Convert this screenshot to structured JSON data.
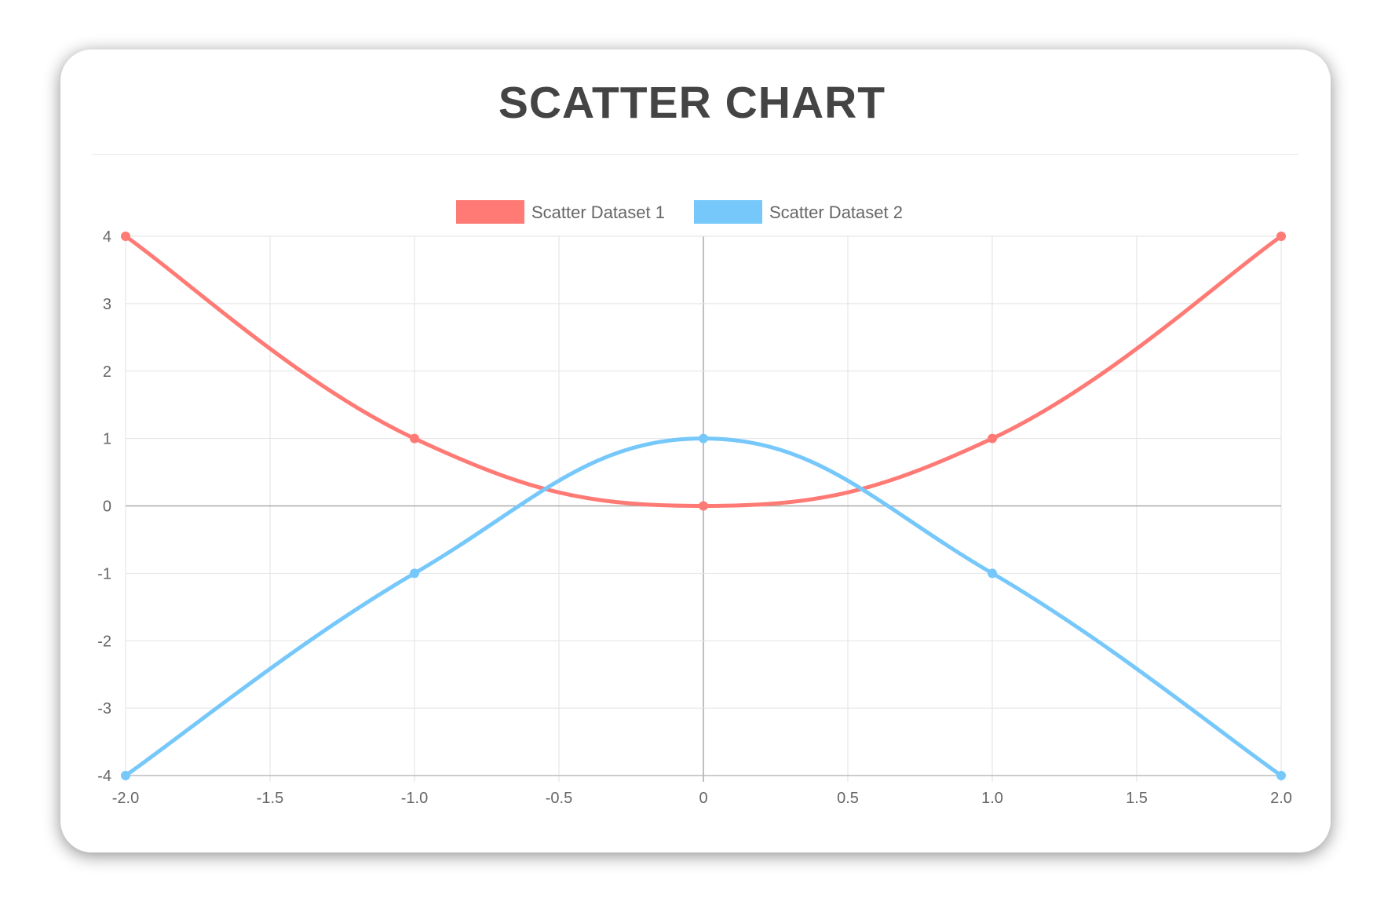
{
  "chart_data": {
    "type": "scatter",
    "title": "SCATTER CHART",
    "xlim": [
      -2,
      2
    ],
    "ylim": [
      -4,
      4
    ],
    "x_ticks": [
      "-2.0",
      "-1.5",
      "-1.0",
      "-0.5",
      "0",
      "0.5",
      "1.0",
      "1.5",
      "2.0"
    ],
    "y_ticks": [
      "4",
      "3",
      "2",
      "1",
      "0",
      "-1",
      "-2",
      "-3",
      "-4"
    ],
    "grid": true,
    "legend_position": "top",
    "show_lines": true,
    "series": [
      {
        "name": "Scatter Dataset 1",
        "color": "#ff7a75",
        "points": [
          {
            "x": -2,
            "y": 4
          },
          {
            "x": -1,
            "y": 1
          },
          {
            "x": 0,
            "y": 0
          },
          {
            "x": 1,
            "y": 1
          },
          {
            "x": 2,
            "y": 4
          }
        ]
      },
      {
        "name": "Scatter Dataset 2",
        "color": "#76c8fb",
        "points": [
          {
            "x": -2,
            "y": -4
          },
          {
            "x": -1,
            "y": -1
          },
          {
            "x": 0,
            "y": 1
          },
          {
            "x": 1,
            "y": -1
          },
          {
            "x": 2,
            "y": -4
          }
        ]
      }
    ]
  }
}
